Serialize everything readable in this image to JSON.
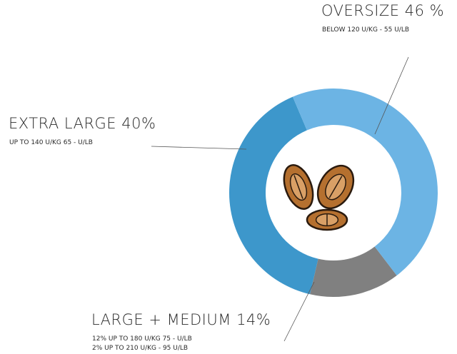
{
  "chart_data": {
    "type": "pie",
    "categories": [
      "OVERSIZE",
      "LARGE + MEDIUM",
      "EXTRA LARGE"
    ],
    "values": [
      46,
      14,
      40
    ],
    "value_labels": [
      "46 %",
      "14%",
      "40%"
    ],
    "colors": [
      "#6cb4e4",
      "#808080",
      "#3d97cb"
    ],
    "descriptions": [
      [
        "BELOW 120 U/KG - 55 U/LB"
      ],
      [
        "12% UP TO 180 U/KG 75 - U/LB",
        "2% UP TO 210 U/KG - 95 U/LB"
      ],
      [
        "UP TO 140 U/KG 65 - U/LB"
      ]
    ],
    "donut": true
  }
}
